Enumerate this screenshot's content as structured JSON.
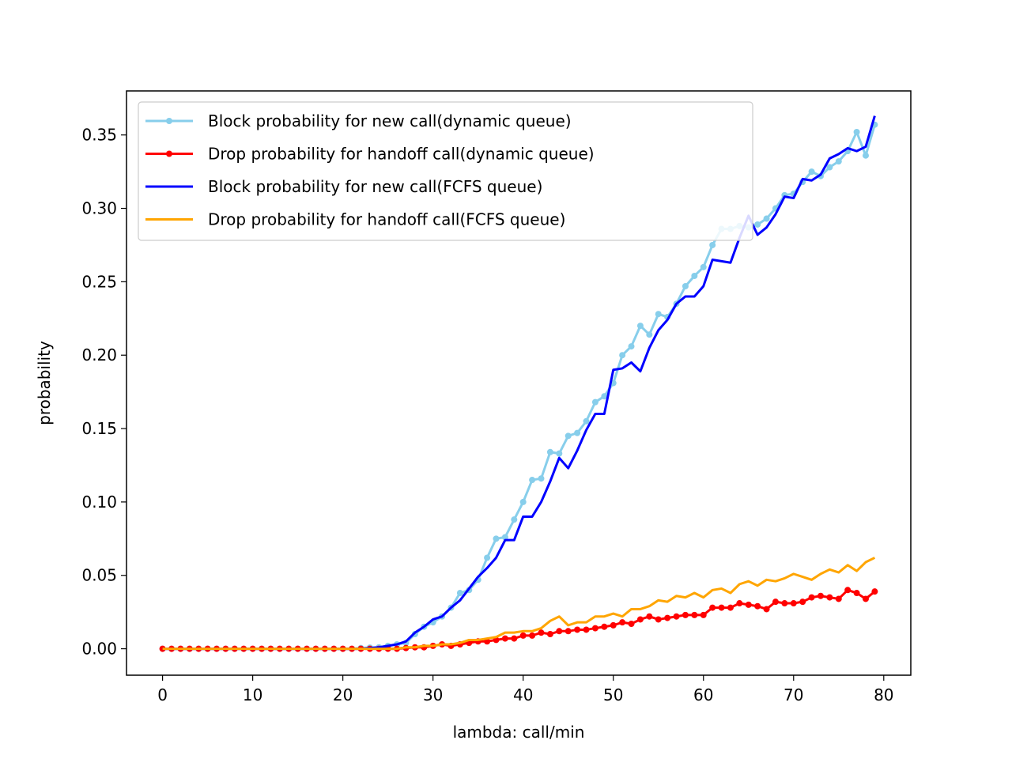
{
  "chart_data": {
    "type": "line",
    "title": "",
    "xlabel": "lambda: call/min",
    "ylabel": "probability",
    "xlim": [
      -4,
      83
    ],
    "ylim": [
      -0.018,
      0.38
    ],
    "xticks": [
      0,
      10,
      20,
      30,
      40,
      50,
      60,
      70,
      80
    ],
    "xtick_labels": [
      "0",
      "10",
      "20",
      "30",
      "40",
      "50",
      "60",
      "70",
      "80"
    ],
    "yticks": [
      0.0,
      0.05,
      0.1,
      0.15,
      0.2,
      0.25,
      0.3,
      0.35
    ],
    "ytick_labels": [
      "0.00",
      "0.05",
      "0.10",
      "0.15",
      "0.20",
      "0.25",
      "0.30",
      "0.35"
    ],
    "grid": false,
    "legend_position": "top-left",
    "x_start": 0,
    "series": [
      {
        "name": "Block probability for new call(dynamic queue)",
        "color": "#87ceeb",
        "marker": "dot",
        "values": [
          0,
          0,
          0,
          0,
          0,
          0,
          0,
          0,
          0,
          0,
          0,
          0,
          0,
          0,
          0,
          0,
          0,
          0,
          0,
          0,
          0,
          0,
          0.0005,
          0.0008,
          0.001,
          0.002,
          0.003,
          0.004,
          0.01,
          0.015,
          0.018,
          0.022,
          0.028,
          0.038,
          0.04,
          0.047,
          0.062,
          0.075,
          0.076,
          0.088,
          0.1,
          0.115,
          0.116,
          0.134,
          0.133,
          0.145,
          0.147,
          0.155,
          0.168,
          0.172,
          0.181,
          0.2,
          0.206,
          0.22,
          0.214,
          0.228,
          0.226,
          0.235,
          0.247,
          0.254,
          0.26,
          0.275,
          0.286,
          0.286,
          0.288,
          0.287,
          0.289,
          0.293,
          0.3,
          0.309,
          0.31,
          0.318,
          0.325,
          0.322,
          0.328,
          0.332,
          0.339,
          0.352,
          0.336,
          0.357
        ]
      },
      {
        "name": "Drop probability for handoff call(dynamic queue)",
        "color": "#ff0000",
        "marker": "dot",
        "values": [
          0,
          0,
          0,
          0,
          0,
          0,
          0,
          0,
          0,
          0,
          0,
          0,
          0,
          0,
          0,
          0,
          0,
          0,
          0,
          0,
          0,
          0,
          0,
          0,
          0,
          0,
          0,
          0.0005,
          0.001,
          0.001,
          0.002,
          0.003,
          0.002,
          0.003,
          0.004,
          0.005,
          0.005,
          0.006,
          0.007,
          0.007,
          0.009,
          0.009,
          0.011,
          0.01,
          0.012,
          0.012,
          0.013,
          0.013,
          0.014,
          0.015,
          0.016,
          0.018,
          0.017,
          0.02,
          0.022,
          0.02,
          0.021,
          0.022,
          0.023,
          0.023,
          0.023,
          0.028,
          0.028,
          0.028,
          0.031,
          0.03,
          0.029,
          0.027,
          0.032,
          0.031,
          0.031,
          0.032,
          0.035,
          0.036,
          0.035,
          0.034,
          0.04,
          0.038,
          0.034,
          0.039
        ]
      },
      {
        "name": "Block probability for new call(FCFS queue)",
        "color": "#0000ff",
        "marker": "none",
        "values": [
          0,
          0,
          0,
          0,
          0,
          0,
          0,
          0,
          0,
          0,
          0,
          0,
          0,
          0,
          0,
          0,
          0,
          0,
          0,
          0,
          0,
          0,
          0,
          0.0005,
          0.001,
          0.002,
          0.003,
          0.005,
          0.011,
          0.015,
          0.02,
          0.022,
          0.028,
          0.033,
          0.041,
          0.049,
          0.055,
          0.062,
          0.074,
          0.074,
          0.09,
          0.09,
          0.1,
          0.114,
          0.13,
          0.123,
          0.135,
          0.149,
          0.16,
          0.16,
          0.19,
          0.191,
          0.195,
          0.189,
          0.205,
          0.217,
          0.224,
          0.235,
          0.24,
          0.24,
          0.247,
          0.265,
          0.264,
          0.263,
          0.28,
          0.295,
          0.282,
          0.287,
          0.296,
          0.308,
          0.307,
          0.32,
          0.319,
          0.323,
          0.334,
          0.337,
          0.341,
          0.339,
          0.342,
          0.363
        ]
      },
      {
        "name": "Drop probability for handoff call(FCFS queue)",
        "color": "#ffa500",
        "marker": "none",
        "values": [
          0,
          0,
          0,
          0,
          0,
          0,
          0,
          0,
          0,
          0,
          0,
          0,
          0,
          0,
          0,
          0,
          0,
          0,
          0,
          0,
          0,
          0,
          0,
          0,
          0,
          0,
          0,
          0.001,
          0.001,
          0.002,
          0.002,
          0.003,
          0.003,
          0.004,
          0.006,
          0.006,
          0.007,
          0.008,
          0.011,
          0.011,
          0.012,
          0.012,
          0.014,
          0.019,
          0.022,
          0.016,
          0.018,
          0.018,
          0.022,
          0.022,
          0.024,
          0.022,
          0.027,
          0.027,
          0.029,
          0.033,
          0.032,
          0.036,
          0.035,
          0.038,
          0.035,
          0.04,
          0.041,
          0.038,
          0.044,
          0.046,
          0.043,
          0.047,
          0.046,
          0.048,
          0.051,
          0.049,
          0.047,
          0.051,
          0.054,
          0.052,
          0.057,
          0.053,
          0.059,
          0.062
        ]
      }
    ]
  }
}
